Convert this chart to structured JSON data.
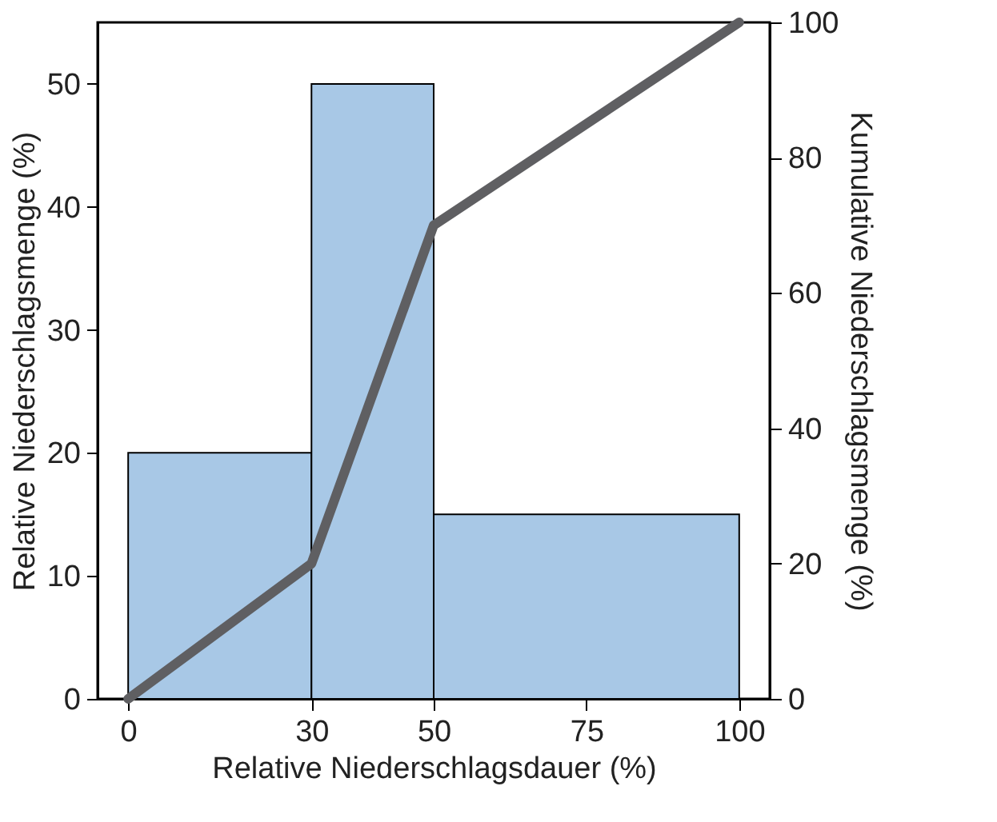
{
  "chart_data": {
    "type": "histogram",
    "xlabel": "Relative Niederschlagsdauer (%)",
    "ylabel": "Relative Niederschlagsmenge (%)",
    "y2label": "Kumulative Niederschlagsmenge (%)",
    "series": [
      {
        "bins": [
          0,
          30,
          50,
          100
        ],
        "values": [
          20,
          50,
          15
        ],
        "color": "#a8c8e6"
      },
      {
        "type": "line",
        "axis": "y2",
        "x": [
          0,
          30,
          50,
          100
        ],
        "values": [
          0,
          20,
          70,
          100
        ],
        "color": "#5f5f62"
      }
    ],
    "xlim": [
      -5,
      105
    ],
    "xticks": [
      0,
      30,
      50,
      75,
      100
    ],
    "ylim": [
      0,
      55
    ],
    "yticks": [
      0,
      10,
      20,
      30,
      40,
      50
    ],
    "y2lim": [
      0,
      100
    ],
    "y2ticks": [
      0,
      20,
      40,
      60,
      80,
      100
    ],
    "grid": false,
    "line_style": "solid"
  }
}
